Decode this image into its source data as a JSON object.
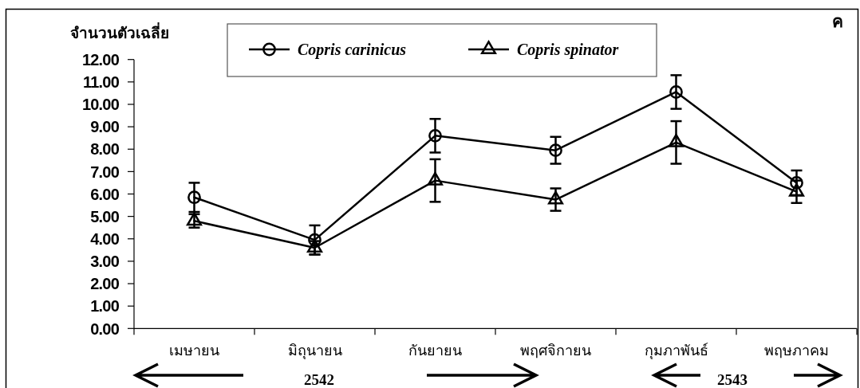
{
  "chart_data": {
    "type": "line",
    "title": "ค",
    "ylabel": "จำนวนตัวเฉลี่ย",
    "categories": [
      "เมษายน",
      "มิถุนายน",
      "กันยายน",
      "พฤศจิกายน",
      "กุมภาพันธ์",
      "พฤษภาคม"
    ],
    "series": [
      {
        "name": "Copris carinicus",
        "color": "#000000",
        "marker": "circle",
        "values": [
          5.85,
          3.95,
          8.6,
          7.95,
          10.55,
          6.5
        ],
        "errors": [
          0.65,
          0.65,
          0.75,
          0.6,
          0.75,
          0.55
        ]
      },
      {
        "name": "Copris spinator",
        "color": "#000000",
        "marker": "triangle",
        "values": [
          4.8,
          3.6,
          6.6,
          5.75,
          8.3,
          6.1
        ],
        "errors": [
          0.3,
          0.3,
          0.95,
          0.5,
          0.95,
          0.5
        ]
      }
    ],
    "ylim": [
      0,
      12
    ],
    "yticks": [
      {
        "value": 0,
        "label": "0.00"
      },
      {
        "value": 1,
        "label": "1.00"
      },
      {
        "value": 2,
        "label": "2.00"
      },
      {
        "value": 3,
        "label": "3.00"
      },
      {
        "value": 4,
        "label": "4.00"
      },
      {
        "value": 5,
        "label": "5.00"
      },
      {
        "value": 6,
        "label": "6.00"
      },
      {
        "value": 7,
        "label": "7.00"
      },
      {
        "value": 8,
        "label": "8.00"
      },
      {
        "value": 9,
        "label": "9.00"
      },
      {
        "value": 10,
        "label": "10.00"
      },
      {
        "value": 11,
        "label": "11.00"
      },
      {
        "value": 12,
        "label": "12.00"
      }
    ],
    "legend": "top",
    "line_style": "solid",
    "annotations": [
      "2542",
      "2543"
    ]
  }
}
